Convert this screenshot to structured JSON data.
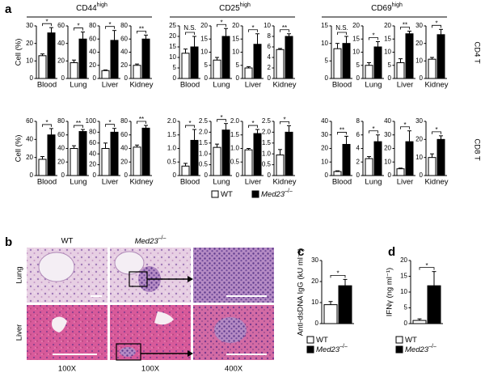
{
  "panel_labels": [
    "a",
    "b",
    "c",
    "d"
  ],
  "groups": [
    {
      "name": "CD44",
      "sup": "high"
    },
    {
      "name": "CD25",
      "sup": "high"
    },
    {
      "name": "CD69",
      "sup": "high"
    }
  ],
  "row_labels": [
    "CD4 T",
    "CD8 T"
  ],
  "legend": [
    {
      "name": "WT",
      "color": "#ffffff"
    },
    {
      "name": "Med23",
      "sup": "–/–",
      "color": "#000000"
    }
  ],
  "histology": {
    "rows": [
      "Lung",
      "Liver"
    ],
    "magnifications": [
      "100X",
      "100X",
      "400X"
    ]
  },
  "chart_data": [
    {
      "type": "bar",
      "category": "Blood",
      "ylabel": "Cell (%)",
      "values": [
        13,
        26
      ],
      "errors": [
        1,
        3
      ],
      "ylim": [
        0,
        30
      ],
      "yticks": [
        0,
        10,
        20,
        30
      ],
      "annotation": "*"
    },
    {
      "type": "bar",
      "category": "Lung",
      "values": [
        18,
        45
      ],
      "errors": [
        3,
        8
      ],
      "ylim": [
        0,
        60
      ],
      "yticks": [
        0,
        20,
        40,
        60
      ],
      "annotation": "*"
    },
    {
      "type": "bar",
      "category": "Liver",
      "values": [
        12,
        58
      ],
      "errors": [
        1,
        15
      ],
      "ylim": [
        0,
        80
      ],
      "yticks": [
        0,
        20,
        40,
        60,
        80
      ],
      "annotation": "*"
    },
    {
      "type": "bar",
      "category": "Kidney",
      "values": [
        20,
        60
      ],
      "errors": [
        2,
        6
      ],
      "ylim": [
        0,
        80
      ],
      "yticks": [
        0,
        20,
        40,
        60,
        80
      ],
      "annotation": "**"
    },
    {
      "type": "bar",
      "category": "Blood",
      "values": [
        12,
        15
      ],
      "errors": [
        2,
        5
      ],
      "ylim": [
        0,
        25
      ],
      "yticks": [
        0,
        5,
        10,
        15,
        20,
        25
      ],
      "annotation": "N.S."
    },
    {
      "type": "bar",
      "category": "Lung",
      "values": [
        7,
        16
      ],
      "errors": [
        1,
        3
      ],
      "ylim": [
        0,
        20
      ],
      "yticks": [
        0,
        5,
        10,
        15,
        20
      ],
      "annotation": "*"
    },
    {
      "type": "bar",
      "category": "Liver",
      "values": [
        4,
        13
      ],
      "errors": [
        0.5,
        4
      ],
      "ylim": [
        0,
        20
      ],
      "yticks": [
        0,
        5,
        10,
        15,
        20
      ],
      "annotation": "*"
    },
    {
      "type": "bar",
      "category": "Kidney",
      "values": [
        5.5,
        8
      ],
      "errors": [
        0.2,
        0.5
      ],
      "ylim": [
        0,
        10
      ],
      "yticks": [
        0,
        2,
        4,
        6,
        8,
        10
      ],
      "annotation": "**"
    },
    {
      "type": "bar",
      "category": "Blood",
      "values": [
        8.5,
        10
      ],
      "errors": [
        1.5,
        2
      ],
      "ylim": [
        0,
        15
      ],
      "yticks": [
        0,
        5,
        10,
        15
      ],
      "annotation": "N.S."
    },
    {
      "type": "bar",
      "category": "Lung",
      "values": [
        5,
        12
      ],
      "errors": [
        1,
        2
      ],
      "ylim": [
        0,
        20
      ],
      "yticks": [
        0,
        5,
        10,
        15,
        20
      ],
      "annotation": "*"
    },
    {
      "type": "bar",
      "category": "Liver",
      "values": [
        6,
        17
      ],
      "errors": [
        1.5,
        1
      ],
      "ylim": [
        0,
        20
      ],
      "yticks": [
        0,
        5,
        10,
        15,
        20
      ],
      "annotation": "**"
    },
    {
      "type": "bar",
      "category": "Kidney",
      "values": [
        11,
        25
      ],
      "errors": [
        1,
        3
      ],
      "ylim": [
        0,
        30
      ],
      "yticks": [
        0,
        10,
        20,
        30
      ],
      "annotation": "*"
    },
    {
      "type": "bar",
      "category": "Blood",
      "ylabel": "Cell (%)",
      "values": [
        18,
        45
      ],
      "errors": [
        3,
        7
      ],
      "ylim": [
        0,
        60
      ],
      "yticks": [
        0,
        20,
        40,
        60
      ],
      "annotation": "*"
    },
    {
      "type": "bar",
      "category": "Lung",
      "values": [
        40,
        65
      ],
      "errors": [
        4,
        3
      ],
      "ylim": [
        0,
        80
      ],
      "yticks": [
        0,
        20,
        40,
        60,
        80
      ],
      "annotation": "**"
    },
    {
      "type": "bar",
      "category": "Liver",
      "values": [
        50,
        80
      ],
      "errors": [
        10,
        7
      ],
      "ylim": [
        0,
        100
      ],
      "yticks": [
        0,
        20,
        40,
        60,
        80,
        100
      ],
      "annotation": "*"
    },
    {
      "type": "bar",
      "category": "Kidney",
      "values": [
        42,
        70
      ],
      "errors": [
        3,
        4
      ],
      "ylim": [
        0,
        80
      ],
      "yticks": [
        0,
        20,
        40,
        60,
        80
      ],
      "annotation": "**"
    },
    {
      "type": "bar",
      "category": "Blood",
      "values": [
        0.35,
        1.3
      ],
      "errors": [
        0.1,
        0.4
      ],
      "ylim": [
        0,
        2
      ],
      "yticks": [
        0,
        0.5,
        {
          "value": 1,
          "label": "1.0"
        },
        1.5,
        {
          "value": 2,
          "label": "2.0"
        }
      ],
      "annotation": "*"
    },
    {
      "type": "bar",
      "category": "Lung",
      "values": [
        1.3,
        2.1
      ],
      "errors": [
        0.15,
        0.3
      ],
      "ylim": [
        0,
        2.5
      ],
      "yticks": [
        0,
        0.5,
        {
          "value": 1,
          "label": "1.0"
        },
        1.5,
        {
          "value": 2,
          "label": "2.0"
        },
        2.5
      ],
      "annotation": "*"
    },
    {
      "type": "bar",
      "category": "Liver",
      "values": [
        0.95,
        1.55
      ],
      "errors": [
        0.05,
        0.15
      ],
      "ylim": [
        0,
        2
      ],
      "yticks": [
        0,
        0.5,
        {
          "value": 1,
          "label": "1.0"
        },
        1.5,
        {
          "value": 2,
          "label": "2.0"
        }
      ],
      "annotation": "*"
    },
    {
      "type": "bar",
      "category": "Kidney",
      "values": [
        0.95,
        2
      ],
      "errors": [
        0.25,
        0.3
      ],
      "ylim": [
        0,
        2.5
      ],
      "yticks": [
        0,
        0.5,
        {
          "value": 1,
          "label": "1.0"
        },
        1.5,
        {
          "value": 2,
          "label": "2.0"
        },
        2.5
      ],
      "annotation": "*"
    },
    {
      "type": "bar",
      "category": "Blood",
      "values": [
        3,
        23
      ],
      "errors": [
        0.5,
        6
      ],
      "ylim": [
        0,
        40
      ],
      "yticks": [
        0,
        10,
        20,
        30,
        40
      ],
      "annotation": "**"
    },
    {
      "type": "bar",
      "category": "Lung",
      "values": [
        2.5,
        5
      ],
      "errors": [
        0.3,
        1
      ],
      "ylim": [
        0,
        8
      ],
      "yticks": [
        0,
        2,
        4,
        6,
        8
      ],
      "annotation": "*"
    },
    {
      "type": "bar",
      "category": "Liver",
      "values": [
        5,
        25
      ],
      "errors": [
        0.5,
        8
      ],
      "ylim": [
        0,
        40
      ],
      "yticks": [
        0,
        10,
        20,
        30,
        40
      ],
      "annotation": "*"
    },
    {
      "type": "bar",
      "category": "Kidney",
      "values": [
        10,
        20
      ],
      "errors": [
        2,
        2
      ],
      "ylim": [
        0,
        30
      ],
      "yticks": [
        0,
        10,
        20,
        30
      ],
      "annotation": "*"
    },
    {
      "type": "bar",
      "ylabel": "Anti-dsDNA IgG (kU ml⁻¹)",
      "values": [
        9,
        18
      ],
      "errors": [
        1.5,
        3
      ],
      "ylim": [
        0,
        30
      ],
      "yticks": [
        0,
        10,
        20,
        30
      ],
      "annotation": "*"
    },
    {
      "type": "bar",
      "ylabel": "IFNγ (ng ml⁻¹)",
      "values": [
        1,
        12
      ],
      "errors": [
        0.5,
        4.5
      ],
      "ylim": [
        0,
        20
      ],
      "yticks": [
        0,
        5,
        10,
        15,
        20
      ],
      "annotation": "*"
    }
  ]
}
